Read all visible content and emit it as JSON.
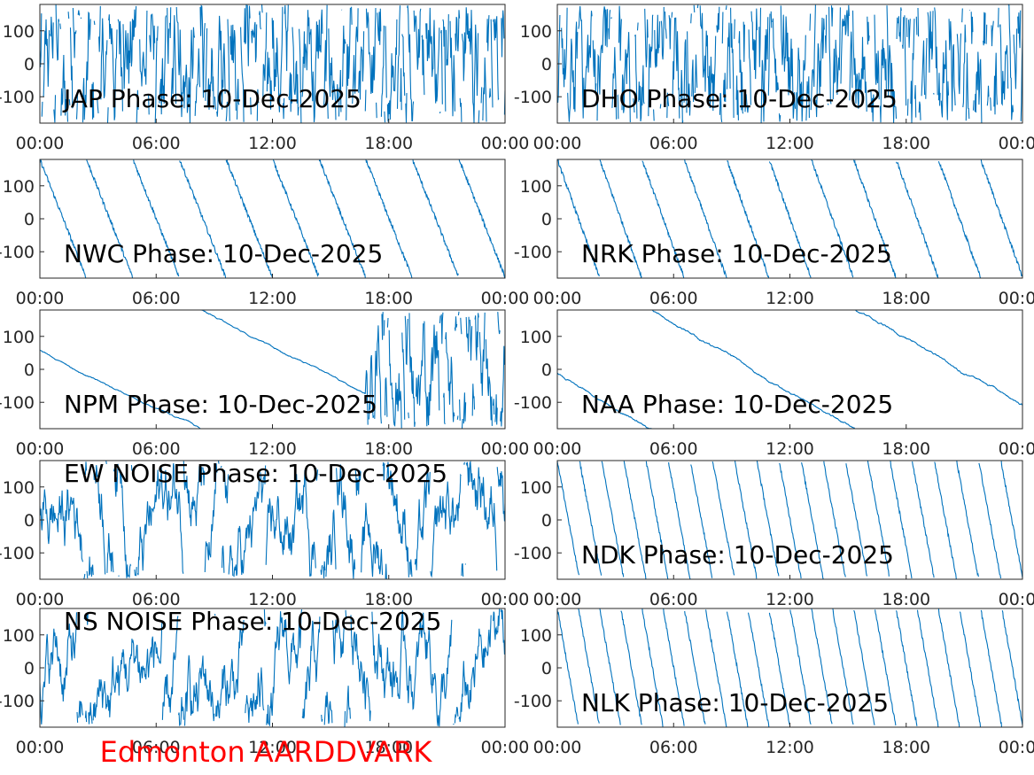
{
  "figure": {
    "footer_label": "Edmonton AARDDVARK",
    "line_color": "#0072BD",
    "footer_color": "#FF0000"
  },
  "chart_data": [
    {
      "type": "line",
      "title": "JAP Phase: 10-Dec-2025",
      "x_ticks": [
        "00:00",
        "06:00",
        "12:00",
        "18:00",
        "00:00"
      ],
      "y_ticks": [
        "100",
        "0",
        "-100"
      ],
      "xlim": [
        0,
        24
      ],
      "ylim": [
        -180,
        180
      ],
      "pattern": "noise-dense",
      "wrap_events": 0
    },
    {
      "type": "line",
      "title": "DHO Phase: 10-Dec-2025",
      "x_ticks": [
        "00:00",
        "06:00",
        "12:00",
        "18:00",
        "00:00"
      ],
      "y_ticks": [
        "100",
        "0",
        "-100"
      ],
      "xlim": [
        0,
        24
      ],
      "ylim": [
        -180,
        180
      ],
      "pattern": "noise-dense",
      "wrap_events": 0
    },
    {
      "type": "line",
      "title": "NWC Phase: 10-Dec-2025",
      "x_ticks": [
        "00:00",
        "06:00",
        "12:00",
        "18:00",
        "00:00"
      ],
      "y_ticks": [
        "100",
        "0",
        "-100"
      ],
      "xlim": [
        0,
        24
      ],
      "ylim": [
        -180,
        180
      ],
      "pattern": "sawtooth",
      "wrap_events": 10
    },
    {
      "type": "line",
      "title": "NRK Phase: 10-Dec-2025",
      "x_ticks": [
        "00:00",
        "06:00",
        "12:00",
        "18:00",
        "00:00"
      ],
      "y_ticks": [
        "100",
        "0",
        "-100"
      ],
      "xlim": [
        0,
        24
      ],
      "ylim": [
        -180,
        180
      ],
      "pattern": "sawtooth",
      "wrap_events": 11
    },
    {
      "type": "line",
      "title": "NPM Phase: 10-Dec-2025",
      "x_ticks": [
        "00:00",
        "06:00",
        "12:00",
        "18:00",
        "00:00"
      ],
      "y_ticks": [
        "100",
        "0",
        "-100"
      ],
      "xlim": [
        0,
        24
      ],
      "ylim": [
        -180,
        180
      ],
      "pattern": "slow-drift-then-noise",
      "wrap_events": 2
    },
    {
      "type": "line",
      "title": "NAA Phase: 10-Dec-2025",
      "x_ticks": [
        "00:00",
        "06:00",
        "12:00",
        "18:00",
        "00:00"
      ],
      "y_ticks": [
        "100",
        "0",
        "-100"
      ],
      "xlim": [
        0,
        24
      ],
      "ylim": [
        -180,
        180
      ],
      "pattern": "slow-drift",
      "wrap_events": 3
    },
    {
      "type": "line",
      "title": "EW NOISE Phase: 10-Dec-2025",
      "x_ticks": [
        "00:00",
        "06:00",
        "12:00",
        "18:00",
        "00:00"
      ],
      "y_ticks": [
        "100",
        "0",
        "-100"
      ],
      "xlim": [
        0,
        24
      ],
      "ylim": [
        -180,
        180
      ],
      "pattern": "noise",
      "wrap_events": 0
    },
    {
      "type": "line",
      "title": "NDK Phase: 10-Dec-2025",
      "x_ticks": [
        "00:00",
        "06:00",
        "12:00",
        "18:00",
        "00:00"
      ],
      "y_ticks": [
        "100",
        "0",
        "-100"
      ],
      "xlim": [
        0,
        24
      ],
      "ylim": [
        -180,
        180
      ],
      "pattern": "sawtooth",
      "wrap_events": 21
    },
    {
      "type": "line",
      "title": "NS NOISE Phase: 10-Dec-2025",
      "x_ticks": [
        "00:00",
        "06:00",
        "12:00",
        "18:00",
        "00:00"
      ],
      "y_ticks": [
        "100",
        "0",
        "-100"
      ],
      "xlim": [
        0,
        24
      ],
      "ylim": [
        -180,
        180
      ],
      "pattern": "noise",
      "wrap_events": 0
    },
    {
      "type": "line",
      "title": "NLK Phase: 10-Dec-2025",
      "x_ticks": [
        "00:00",
        "06:00",
        "12:00",
        "18:00",
        "00:00"
      ],
      "y_ticks": [
        "100",
        "0",
        "-100"
      ],
      "xlim": [
        0,
        24
      ],
      "ylim": [
        -180,
        180
      ],
      "pattern": "sawtooth",
      "wrap_events": 22
    }
  ]
}
